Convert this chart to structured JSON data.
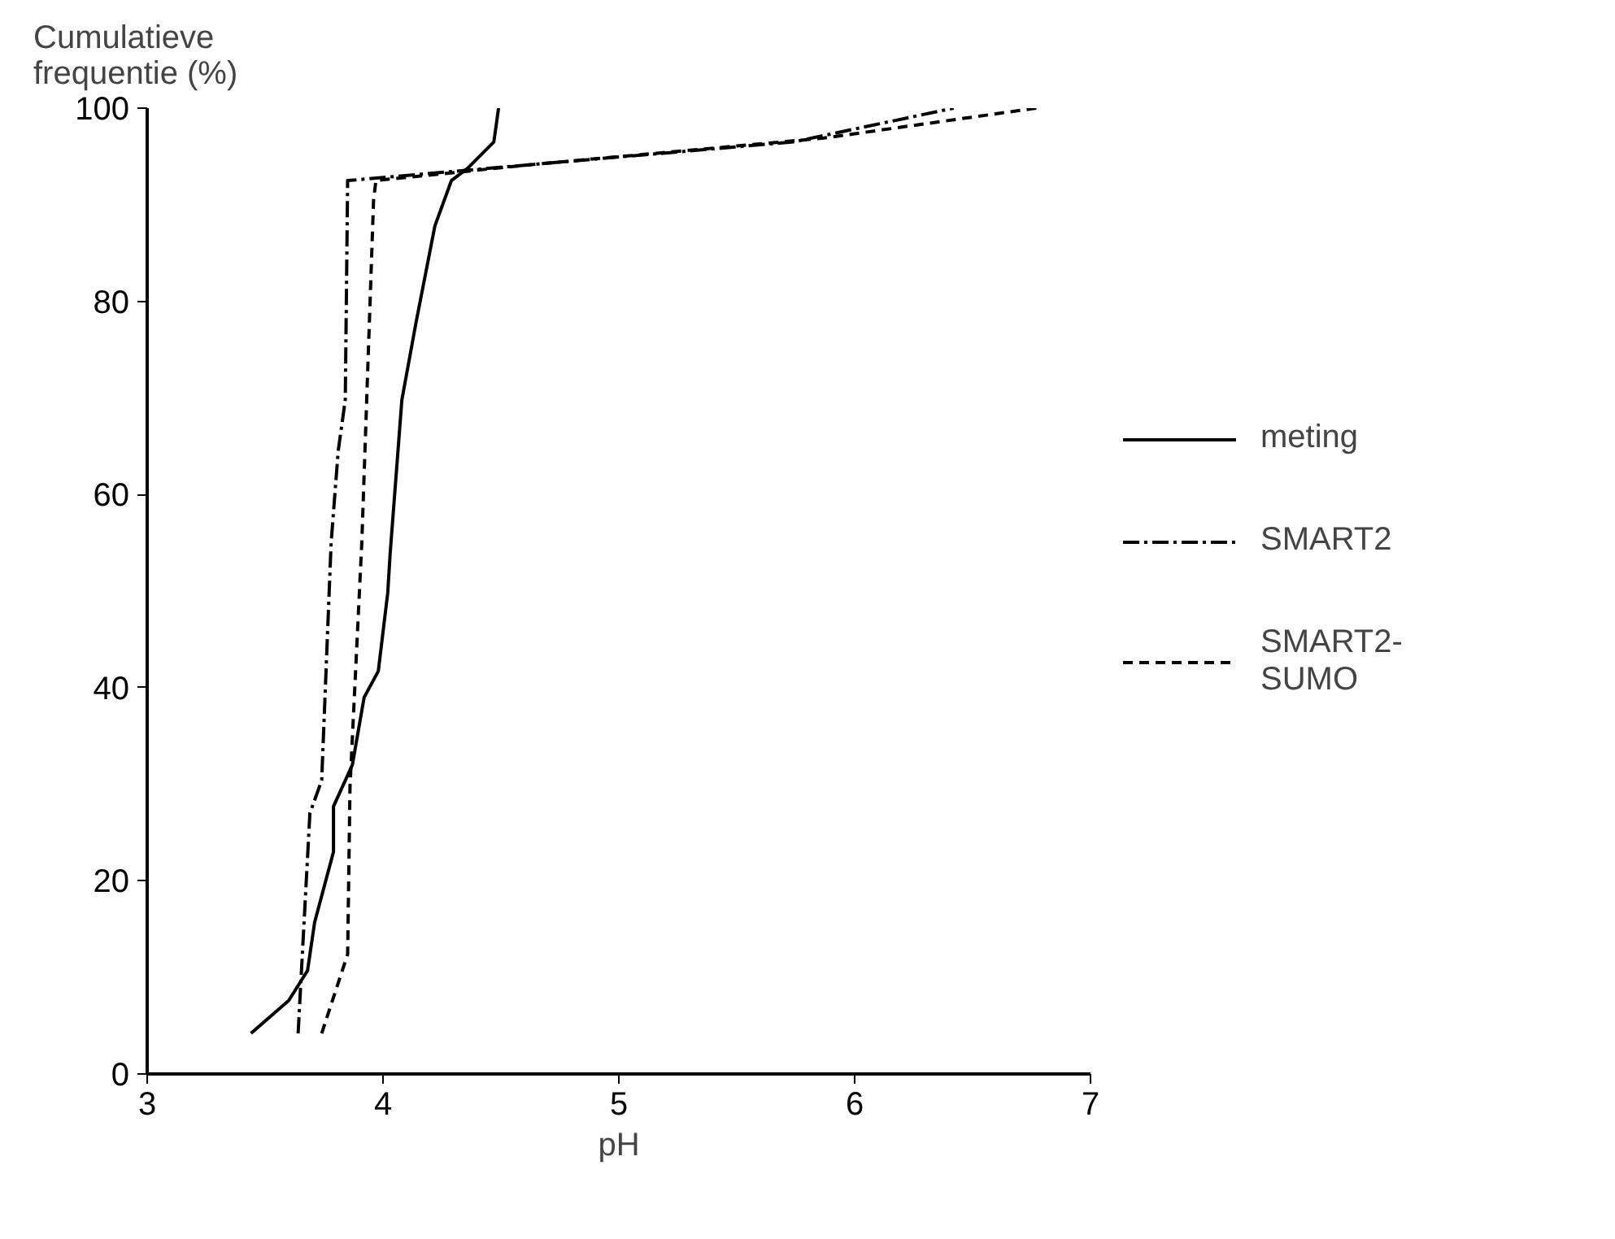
{
  "chart_data": {
    "type": "line",
    "ylabel": "Cumulatieve\nfrequentie (%)",
    "xlabel": "pH",
    "xlim": [
      3,
      7
    ],
    "ylim": [
      0,
      100
    ],
    "xticks": [
      3,
      4,
      5,
      6,
      7
    ],
    "yticks": [
      0,
      20,
      40,
      60,
      80,
      100
    ],
    "grid": false,
    "legend": "right",
    "marker": "none",
    "series": [
      {
        "name": "meting",
        "color": "#000000",
        "line_style": "solid",
        "x": [
          3.44,
          3.6,
          3.68,
          3.71,
          3.79,
          3.79,
          3.87,
          3.92,
          3.98,
          4.02,
          4.03,
          4.08,
          4.14,
          4.22,
          4.29,
          4.36,
          4.47,
          4.49
        ],
        "values": [
          4.2,
          7.6,
          10.7,
          15.7,
          23,
          27.7,
          32,
          39,
          41.7,
          49.8,
          53.8,
          69.8,
          77.8,
          87.8,
          92.5,
          93.8,
          96.5,
          100
        ]
      },
      {
        "name": "SMART2",
        "color": "#000000",
        "line_style": "dashdot",
        "x": [
          3.64,
          3.69,
          3.74,
          3.78,
          3.81,
          3.84,
          3.85,
          4.65,
          5.74,
          6.42
        ],
        "values": [
          4.2,
          27,
          30.4,
          55,
          64.5,
          69.8,
          92.5,
          94.2,
          96.5,
          100
        ]
      },
      {
        "name": "SMART2-\nSUMO",
        "color": "#000000",
        "line_style": "dashed",
        "x": [
          3.74,
          3.85,
          3.86,
          3.91,
          3.96,
          3.97,
          4.65,
          5.87,
          6.77
        ],
        "values": [
          4.2,
          12.4,
          29.7,
          55,
          90.5,
          92.5,
          94.2,
          96.9,
          100
        ]
      }
    ]
  }
}
